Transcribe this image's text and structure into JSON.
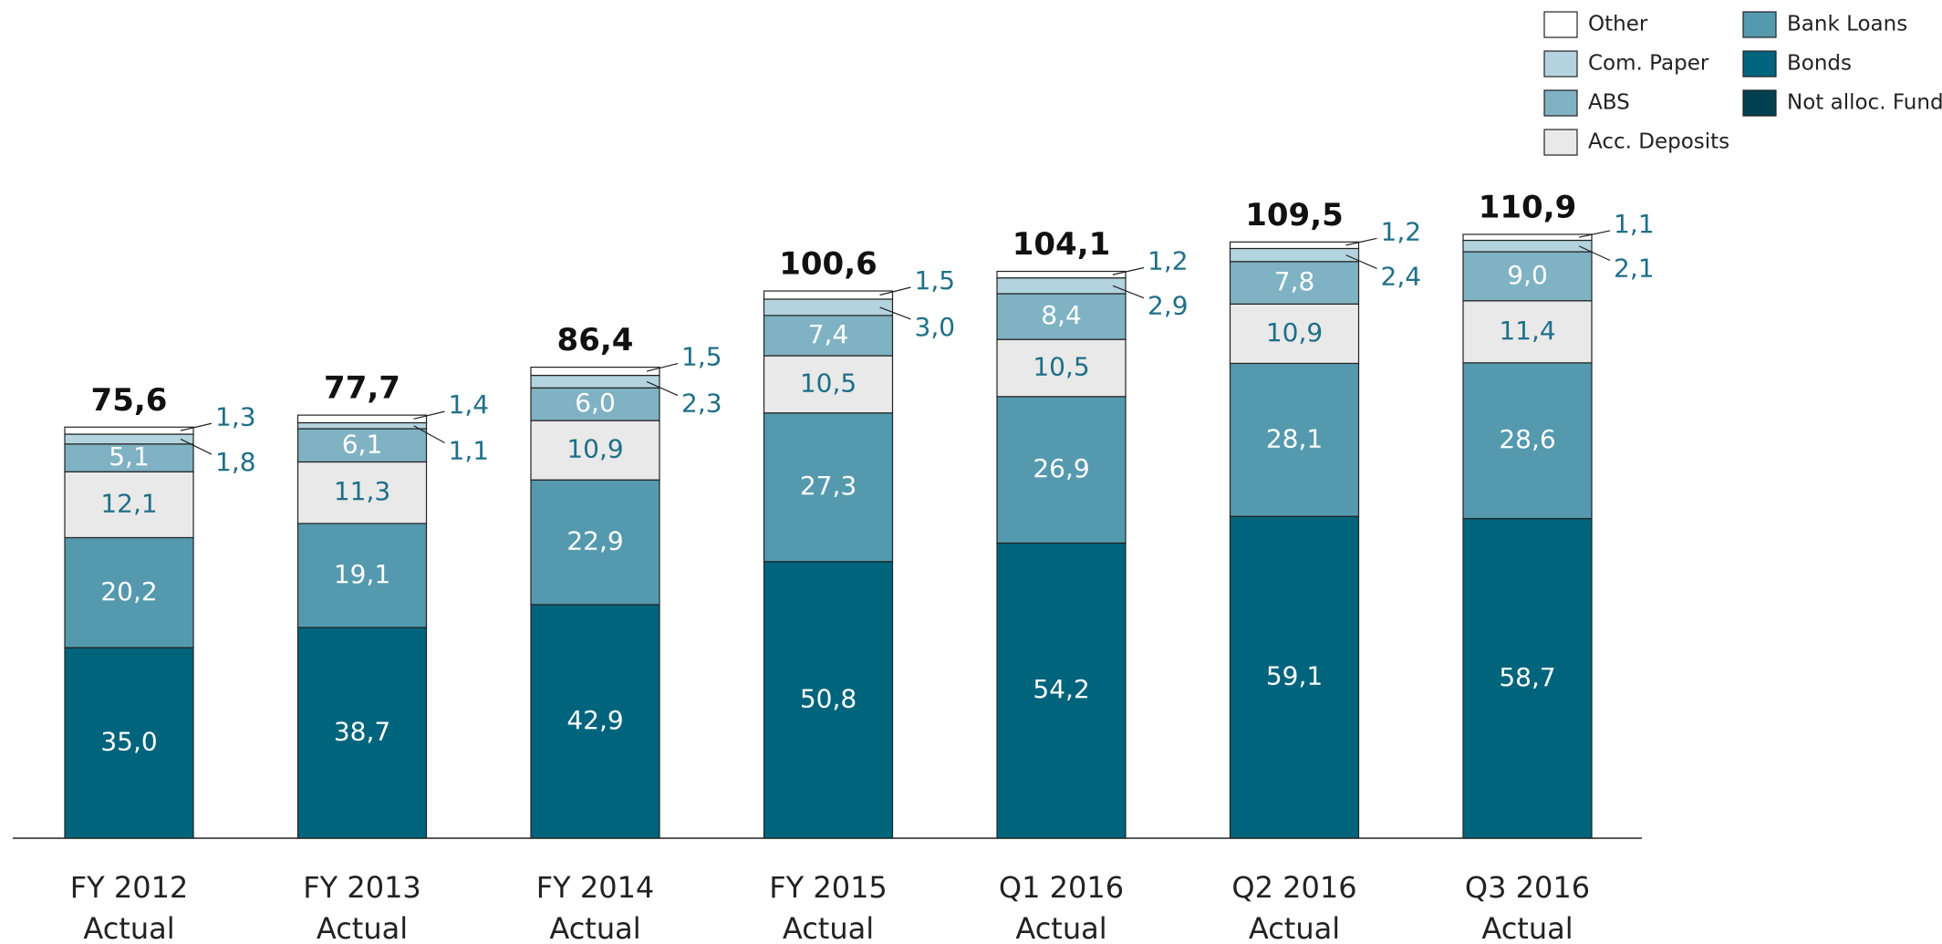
{
  "chart_data": {
    "type": "stacked_bar",
    "categories": [
      [
        "FY 2012",
        "Actual"
      ],
      [
        "FY 2013",
        "Actual"
      ],
      [
        "FY 2014",
        "Actual"
      ],
      [
        "FY 2015",
        "Actual"
      ],
      [
        "Q1 2016",
        "Actual"
      ],
      [
        "Q2 2016",
        "Actual"
      ],
      [
        "Q3 2016",
        "Actual"
      ]
    ],
    "series": [
      {
        "name": "Other",
        "color": "#ffffff",
        "values": [
          1.3,
          1.4,
          1.5,
          1.5,
          1.2,
          1.2,
          1.1
        ],
        "value_labels": [
          "1,3",
          "1,4",
          "1,5",
          "1,5",
          "1,2",
          "1,2",
          "1,1"
        ]
      },
      {
        "name": "Com. Paper",
        "color": "#b3d4df",
        "values": [
          1.8,
          1.1,
          2.3,
          3.0,
          2.9,
          2.4,
          2.1
        ],
        "value_labels": [
          "1,8",
          "1,1",
          "2,3",
          "3,0",
          "2,9",
          "2,4",
          "2,1"
        ]
      },
      {
        "name": "ABS",
        "color": "#7fb2c3",
        "values": [
          5.1,
          6.1,
          6.0,
          7.4,
          8.4,
          7.8,
          9.0
        ],
        "value_labels": [
          "5,1",
          "6,1",
          "6,0",
          "7,4",
          "8,4",
          "7,8",
          "9,0"
        ]
      },
      {
        "name": "Acc. Deposits",
        "color": "#e9e9e9",
        "values": [
          12.1,
          11.3,
          10.9,
          10.5,
          10.5,
          10.9,
          11.4
        ],
        "value_labels": [
          "12,1",
          "11,3",
          "10,9",
          "10,5",
          "10,5",
          "10,9",
          "11,4"
        ]
      },
      {
        "name": "Bank Loans",
        "color": "#5599ae",
        "values": [
          20.2,
          19.1,
          22.9,
          27.3,
          26.9,
          28.1,
          28.6
        ],
        "value_labels": [
          "20,2",
          "19,1",
          "22,9",
          "27,3",
          "26,9",
          "28,1",
          "28,6"
        ]
      },
      {
        "name": "Bonds",
        "color": "#00647c",
        "values": [
          35.0,
          38.7,
          42.9,
          50.8,
          54.2,
          59.1,
          58.7
        ],
        "value_labels": [
          "35,0",
          "38,7",
          "42,9",
          "50,8",
          "54,2",
          "59,1",
          "58,7"
        ]
      },
      {
        "name": "Not alloc. Fund.",
        "color": "#004050",
        "values": [
          null,
          null,
          null,
          null,
          null,
          null,
          null
        ]
      }
    ],
    "totals": [
      75.6,
      77.7,
      86.4,
      100.6,
      104.1,
      109.5,
      110.9
    ],
    "total_labels": [
      "75,6",
      "77,7",
      "86,4",
      "100,6",
      "104,1",
      "109,5",
      "110,9"
    ]
  }
}
